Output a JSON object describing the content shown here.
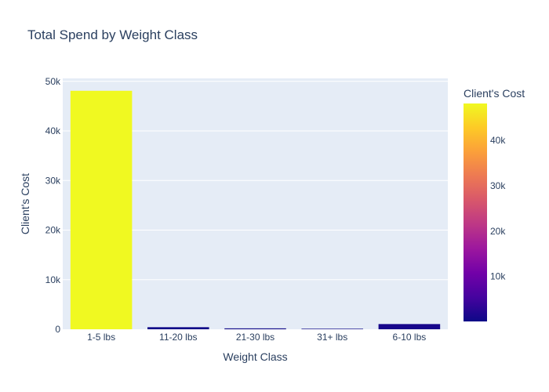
{
  "chart_data": {
    "type": "bar",
    "title": "Total Spend by Weight Class",
    "xlabel": "Weight Class",
    "ylabel": "Client's Cost",
    "categories": [
      "1-5 lbs",
      "11-20 lbs",
      "21-30 lbs",
      "31+ lbs",
      "6-10 lbs"
    ],
    "values": [
      48100,
      420,
      180,
      110,
      1050
    ],
    "ylim": [
      0,
      50600
    ],
    "yticks": [
      0,
      10000,
      20000,
      30000,
      40000,
      50000
    ],
    "ytick_labels": [
      "0",
      "10k",
      "20k",
      "30k",
      "40k",
      "50k"
    ],
    "colorbar": {
      "title": "Client's Cost",
      "range": [
        110,
        48100
      ],
      "ticks": [
        10000,
        20000,
        30000,
        40000
      ],
      "tick_labels": [
        "10k",
        "20k",
        "30k",
        "40k"
      ],
      "colorscale": [
        "#0d0887",
        "#46039f",
        "#7201a8",
        "#9c179e",
        "#bd3786",
        "#d8576b",
        "#ed7953",
        "#fb9f3a",
        "#fdca26",
        "#f0f921"
      ]
    },
    "grid": true,
    "plot_bgcolor": "#e5ecf6"
  }
}
